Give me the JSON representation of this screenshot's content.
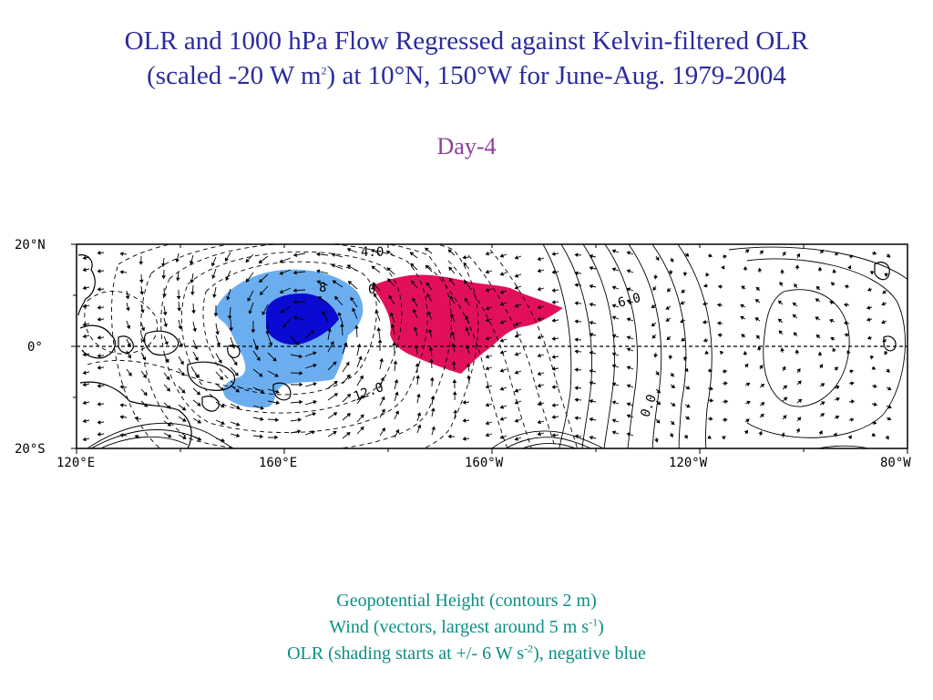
{
  "title": {
    "line1": "OLR and 1000 hPa Flow Regressed against Kelvin-filtered OLR",
    "line2_pre": "(scaled -20 W m",
    "line2_sup": "2",
    "line2_post": ") at 10°N, 150°W for June-Aug. 1979-2004"
  },
  "panel_label": "Day-4",
  "map": {
    "lat_labels": [
      "20°N",
      "0°",
      "20°S"
    ],
    "lon_labels": [
      "120°E",
      "160°E",
      "160°W",
      "120°W",
      "80°W"
    ],
    "contour_labels": [
      "4.0",
      "8",
      "0",
      "12.0",
      "6.0",
      "0.0"
    ],
    "colors": {
      "olr_negative_light": "#6aaef0",
      "olr_negative_dark": "#0a0ad2",
      "olr_positive": "#e2105a",
      "contour": "#000000",
      "land_outline": "#000000"
    }
  },
  "caption": {
    "line1": "Geopotential Height (contours 2 m)",
    "line2_pre": "Wind (vectors, largest around 5 m s",
    "line2_sup": "-1",
    "line2_post": ")",
    "line3_pre": "OLR (shading starts at +/- 6 W s",
    "line3_sup": "-2",
    "line3_post": "), negative blue"
  }
}
